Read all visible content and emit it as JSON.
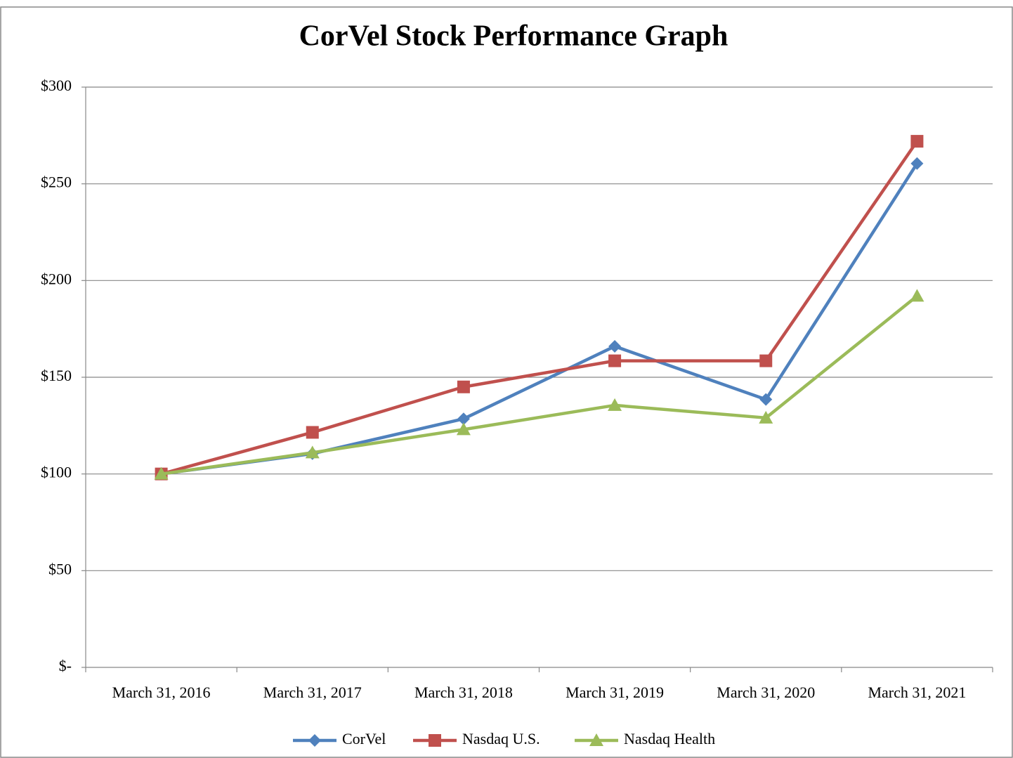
{
  "chart_data": {
    "type": "line",
    "title": "CorVel Stock Performance Graph",
    "categories": [
      "March 31, 2016",
      "March 31, 2017",
      "March 31, 2018",
      "March 31, 2019",
      "March 31, 2020",
      "March 31, 2021"
    ],
    "series": [
      {
        "name": "CorVel",
        "color": "#4f81bd",
        "marker": "diamond",
        "values": [
          100,
          110.5,
          128.5,
          166,
          138.5,
          260.5
        ]
      },
      {
        "name": "Nasdaq U.S.",
        "color": "#c0504d",
        "marker": "square",
        "values": [
          100,
          121.5,
          145,
          158.5,
          158.5,
          272
        ]
      },
      {
        "name": "Nasdaq Health",
        "color": "#9bbb59",
        "marker": "triangle",
        "values": [
          100,
          111,
          123,
          135.5,
          129,
          192
        ]
      }
    ],
    "ylim": [
      0,
      300
    ],
    "yticks": [
      {
        "value": 0,
        "label": "$-"
      },
      {
        "value": 50,
        "label": "$50"
      },
      {
        "value": 100,
        "label": "$100"
      },
      {
        "value": 150,
        "label": "$150"
      },
      {
        "value": 200,
        "label": "$200"
      },
      {
        "value": 250,
        "label": "$250"
      },
      {
        "value": 300,
        "label": "$300"
      }
    ],
    "grid": true,
    "legend": "bottom"
  }
}
